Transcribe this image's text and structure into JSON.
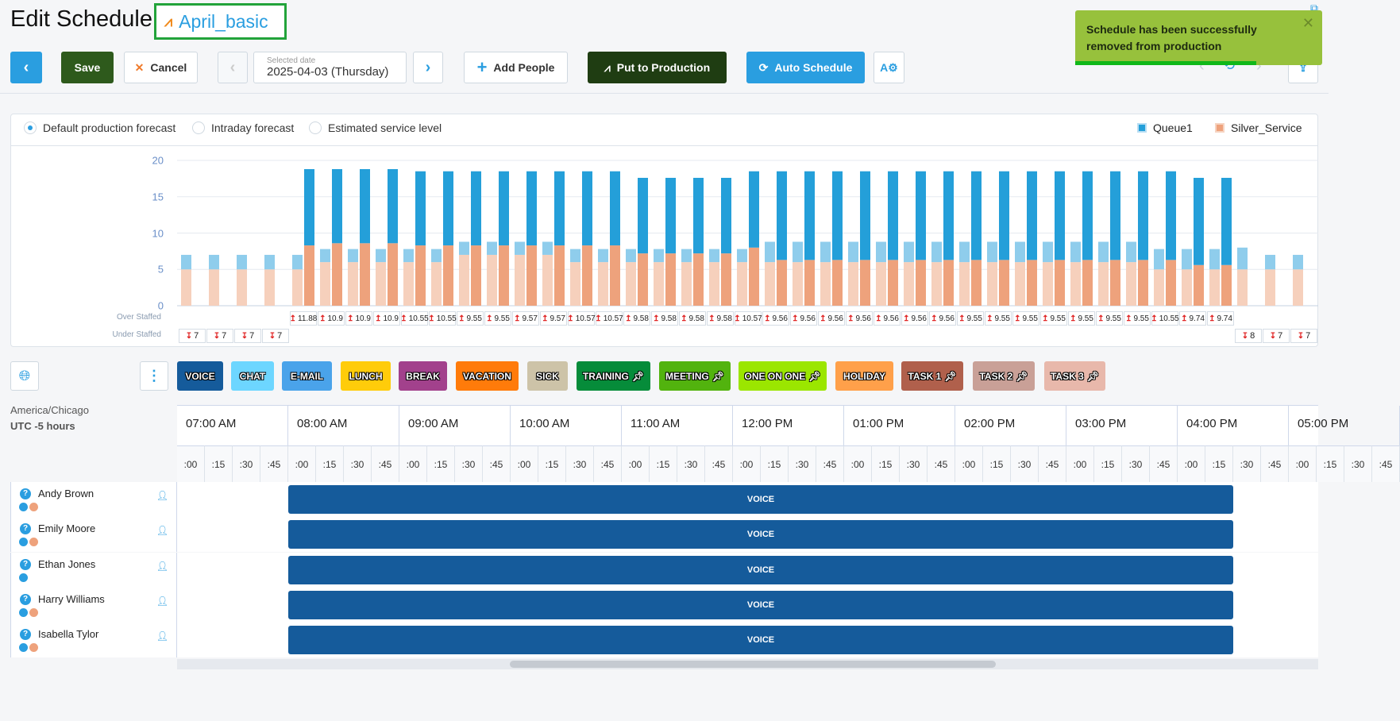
{
  "header": {
    "title": "Edit Schedule:",
    "schedule_name": "April_basic"
  },
  "toolbar": {
    "save": "Save",
    "cancel": "Cancel",
    "date_label": "Selected date",
    "date_value": "2025-04-03 (Thursday)",
    "add_people": "Add People",
    "put_to_production": "Put to Production",
    "auto_schedule": "Auto Schedule"
  },
  "toast": {
    "message": "Schedule has been successfully removed from production",
    "progress": 0.73
  },
  "forecast_options": [
    {
      "label": "Default production forecast",
      "selected": true
    },
    {
      "label": "Intraday forecast",
      "selected": false
    },
    {
      "label": "Estimated service level",
      "selected": false
    }
  ],
  "chart_data": {
    "type": "bar",
    "legend": [
      {
        "name": "Queue1",
        "color": "#249fd9"
      },
      {
        "name": "Silver_Service",
        "color": "#eea27c"
      }
    ],
    "legend_position": "top-right",
    "ylim": [
      0,
      20
    ],
    "yticks": [
      "0",
      "5",
      "10",
      "15",
      "20"
    ],
    "slots": 41,
    "forecast_total": [
      7,
      7,
      7,
      7,
      7,
      7.8,
      7.8,
      7.8,
      7.8,
      7.8,
      8.8,
      8.8,
      8.8,
      8.8,
      7.8,
      7.8,
      7.8,
      7.8,
      7.8,
      7.8,
      7.8,
      8.8,
      8.8,
      8.8,
      8.8,
      8.8,
      8.8,
      8.8,
      8.8,
      8.8,
      8.8,
      8.8,
      8.8,
      8.8,
      8.8,
      7.8,
      7.8,
      7.8,
      8,
      7,
      7
    ],
    "forecast_silver": [
      5,
      5,
      5,
      5,
      5,
      6,
      6,
      6,
      6,
      6,
      7,
      7,
      7,
      7,
      6,
      6,
      6,
      6,
      6,
      6,
      6,
      6,
      6,
      6,
      6,
      6,
      6,
      6,
      6,
      6,
      6,
      6,
      6,
      6,
      6,
      5,
      5,
      5,
      5,
      5,
      5
    ],
    "scheduled_total": [
      null,
      null,
      null,
      null,
      18.8,
      18.8,
      18.8,
      18.8,
      18.5,
      18.5,
      18.5,
      18.5,
      18.5,
      18.5,
      18.5,
      18.5,
      17.6,
      17.6,
      17.6,
      17.6,
      18.5,
      18.5,
      18.5,
      18.5,
      18.5,
      18.5,
      18.5,
      18.5,
      18.5,
      18.5,
      18.5,
      18.5,
      18.5,
      18.5,
      18.5,
      18.5,
      17.6,
      17.6,
      null,
      null,
      null
    ],
    "scheduled_silver": [
      null,
      null,
      null,
      null,
      8.3,
      8.6,
      8.6,
      8.6,
      8.3,
      8.3,
      8.3,
      8.3,
      8.3,
      8.3,
      8.3,
      8.3,
      7.2,
      7.2,
      7.2,
      7.2,
      8,
      6.3,
      6.3,
      6.3,
      6.3,
      6.3,
      6.3,
      6.3,
      6.3,
      6.3,
      6.3,
      6.3,
      6.3,
      6.3,
      6.3,
      6.3,
      5.6,
      5.6,
      null,
      null,
      null
    ],
    "over_staffed_label": "Over Staffed",
    "under_staffed_label": "Under Staffed",
    "over_staffed": {
      "start_slot": 4,
      "values": [
        "11.88",
        "10.9",
        "10.9",
        "10.9",
        "10.55",
        "10.55",
        "9.55",
        "9.55",
        "9.57",
        "9.57",
        "10.57",
        "10.57",
        "9.58",
        "9.58",
        "9.58",
        "9.58",
        "10.57",
        "9.56",
        "9.56",
        "9.56",
        "9.56",
        "9.56",
        "9.56",
        "9.56",
        "9.55",
        "9.55",
        "9.55",
        "9.55",
        "9.55",
        "9.55",
        "9.55",
        "10.55",
        "9.74",
        "9.74"
      ]
    },
    "under_staffed": [
      {
        "slot": 0,
        "value": "7"
      },
      {
        "slot": 1,
        "value": "7"
      },
      {
        "slot": 2,
        "value": "7"
      },
      {
        "slot": 3,
        "value": "7"
      },
      {
        "slot": 38,
        "value": "8"
      },
      {
        "slot": 39,
        "value": "7"
      },
      {
        "slot": 40,
        "value": "7"
      }
    ]
  },
  "activities": [
    {
      "label": "VOICE",
      "color": "#155b9b",
      "pin": false
    },
    {
      "label": "CHAT",
      "color": "#6dd6ff",
      "pin": false
    },
    {
      "label": "E-MAIL",
      "color": "#4aa3ea",
      "pin": false
    },
    {
      "label": "LUNCH",
      "color": "#ffcc0a",
      "pin": false
    },
    {
      "label": "BREAK",
      "color": "#a2418c",
      "pin": false
    },
    {
      "label": "VACATION",
      "color": "#ff7b0a",
      "pin": false
    },
    {
      "label": "SICK",
      "color": "#cdc3a8",
      "pin": false
    },
    {
      "label": "TRAINING",
      "color": "#068c3a",
      "pin": true
    },
    {
      "label": "MEETING",
      "color": "#52b30e",
      "pin": true
    },
    {
      "label": "ONE ON ONE",
      "color": "#9be600",
      "pin": true
    },
    {
      "label": "HOLIDAY",
      "color": "#ffa04a",
      "pin": false
    },
    {
      "label": "TASK 1",
      "color": "#b0604c",
      "pin": true
    },
    {
      "label": "TASK 2",
      "color": "#c9a097",
      "pin": true
    },
    {
      "label": "TASK 3",
      "color": "#e8b8ab",
      "pin": true
    }
  ],
  "timezone": {
    "name": "America/Chicago",
    "offset": "UTC -5 hours"
  },
  "timeline": {
    "hours": [
      "07:00 AM",
      "08:00 AM",
      "09:00 AM",
      "10:00 AM",
      "11:00 AM",
      "12:00 PM",
      "01:00 PM",
      "02:00 PM",
      "03:00 PM",
      "04:00 PM",
      "05:00 PM"
    ],
    "quarters": [
      ":00",
      ":15",
      ":30",
      ":45"
    ]
  },
  "people": [
    {
      "name": "Andy Brown",
      "queues": [
        "#2a9ee0",
        "#eea27c"
      ],
      "shift": {
        "label": "VOICE",
        "start": "08:00",
        "end": "16:30"
      }
    },
    {
      "name": "Emily Moore",
      "queues": [
        "#2a9ee0",
        "#eea27c"
      ],
      "shift": {
        "label": "VOICE",
        "start": "08:00",
        "end": "16:30"
      }
    },
    {
      "name": "Ethan Jones",
      "queues": [
        "#2a9ee0"
      ],
      "shift": {
        "label": "VOICE",
        "start": "08:00",
        "end": "16:30"
      }
    },
    {
      "name": "Harry Williams",
      "queues": [
        "#2a9ee0",
        "#eea27c"
      ],
      "shift": {
        "label": "VOICE",
        "start": "08:00",
        "end": "16:30"
      }
    },
    {
      "name": "Isabella Tylor",
      "queues": [
        "#2a9ee0",
        "#eea27c"
      ],
      "shift": {
        "label": "VOICE",
        "start": "08:00",
        "end": "16:30"
      }
    }
  ]
}
